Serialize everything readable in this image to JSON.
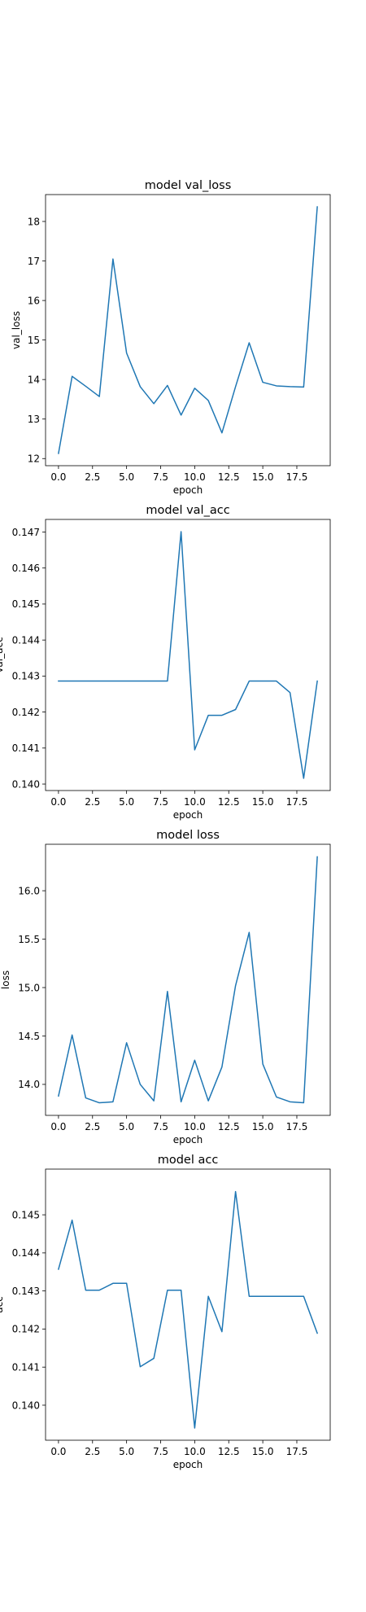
{
  "chart_data": [
    {
      "type": "line",
      "title": "model val_loss",
      "xlabel": "epoch",
      "ylabel": "val_loss",
      "x": [
        0,
        1,
        2,
        3,
        4,
        5,
        6,
        7,
        8,
        9,
        10,
        11,
        12,
        13,
        14,
        15,
        16,
        17,
        18,
        19
      ],
      "values": [
        12.13,
        14.08,
        13.83,
        13.57,
        17.05,
        14.67,
        13.82,
        13.39,
        13.85,
        13.1,
        13.78,
        13.47,
        12.65,
        13.82,
        14.93,
        13.93,
        13.84,
        13.82,
        13.81,
        18.37
      ],
      "xlim": [
        -0.95,
        19.95
      ],
      "ylim": [
        11.82,
        18.68
      ],
      "xticks": [
        0.0,
        2.5,
        5.0,
        7.5,
        10.0,
        12.5,
        15.0,
        17.5
      ],
      "xtick_labels": [
        "0.0",
        "2.5",
        "5.0",
        "7.5",
        "10.0",
        "12.5",
        "15.0",
        "17.5"
      ],
      "yticks": [
        12,
        13,
        14,
        15,
        16,
        17,
        18
      ],
      "ytick_labels": [
        "12",
        "13",
        "14",
        "15",
        "16",
        "17",
        "18"
      ],
      "color": "#1f77b4",
      "grid": false
    },
    {
      "type": "line",
      "title": "model val_acc",
      "xlabel": "epoch",
      "ylabel": "val_acc",
      "x": [
        0,
        1,
        2,
        3,
        4,
        5,
        6,
        7,
        8,
        9,
        10,
        11,
        12,
        13,
        14,
        15,
        16,
        17,
        18,
        19
      ],
      "values": [
        0.14286,
        0.14286,
        0.14286,
        0.14286,
        0.14286,
        0.14286,
        0.14286,
        0.14286,
        0.14286,
        0.14701,
        0.14095,
        0.14191,
        0.14191,
        0.14207,
        0.14286,
        0.14286,
        0.14286,
        0.14254,
        0.14016,
        0.14286
      ],
      "xlim": [
        -0.95,
        19.95
      ],
      "ylim": [
        0.13982,
        0.14735
      ],
      "xticks": [
        0.0,
        2.5,
        5.0,
        7.5,
        10.0,
        12.5,
        15.0,
        17.5
      ],
      "xtick_labels": [
        "0.0",
        "2.5",
        "5.0",
        "7.5",
        "10.0",
        "12.5",
        "15.0",
        "17.5"
      ],
      "yticks": [
        0.14,
        0.141,
        0.142,
        0.143,
        0.144,
        0.145,
        0.146,
        0.147
      ],
      "ytick_labels": [
        "0.140",
        "0.141",
        "0.142",
        "0.143",
        "0.144",
        "0.145",
        "0.146",
        "0.147"
      ],
      "color": "#1f77b4",
      "grid": false
    },
    {
      "type": "line",
      "title": "model loss",
      "xlabel": "epoch",
      "ylabel": "loss",
      "x": [
        0,
        1,
        2,
        3,
        4,
        5,
        6,
        7,
        8,
        9,
        10,
        11,
        12,
        13,
        14,
        15,
        16,
        17,
        18,
        19
      ],
      "values": [
        13.88,
        14.51,
        13.86,
        13.81,
        13.82,
        14.43,
        14.0,
        13.83,
        14.96,
        13.82,
        14.25,
        13.83,
        14.18,
        15.02,
        15.57,
        14.21,
        13.87,
        13.82,
        13.81,
        16.35
      ],
      "xlim": [
        -0.95,
        19.95
      ],
      "ylim": [
        13.68,
        16.48
      ],
      "xticks": [
        0.0,
        2.5,
        5.0,
        7.5,
        10.0,
        12.5,
        15.0,
        17.5
      ],
      "xtick_labels": [
        "0.0",
        "2.5",
        "5.0",
        "7.5",
        "10.0",
        "12.5",
        "15.0",
        "17.5"
      ],
      "yticks": [
        14.0,
        14.5,
        15.0,
        15.5,
        16.0
      ],
      "ytick_labels": [
        "14.0",
        "14.5",
        "15.0",
        "15.5",
        "16.0"
      ],
      "color": "#1f77b4",
      "grid": false
    },
    {
      "type": "line",
      "title": "model acc",
      "xlabel": "epoch",
      "ylabel": "acc",
      "x": [
        0,
        1,
        2,
        3,
        4,
        5,
        6,
        7,
        8,
        9,
        10,
        11,
        12,
        13,
        14,
        15,
        16,
        17,
        18,
        19
      ],
      "values": [
        0.14357,
        0.14486,
        0.14302,
        0.14302,
        0.1432,
        0.1432,
        0.14101,
        0.14123,
        0.14302,
        0.14302,
        0.1394,
        0.14286,
        0.14193,
        0.14561,
        0.14286,
        0.14286,
        0.14286,
        0.14286,
        0.14286,
        0.14189
      ],
      "xlim": [
        -0.95,
        19.95
      ],
      "ylim": [
        0.13908,
        0.1462
      ],
      "xticks": [
        0.0,
        2.5,
        5.0,
        7.5,
        10.0,
        12.5,
        15.0,
        17.5
      ],
      "xtick_labels": [
        "0.0",
        "2.5",
        "5.0",
        "7.5",
        "10.0",
        "12.5",
        "15.0",
        "17.5"
      ],
      "yticks": [
        0.14,
        0.141,
        0.142,
        0.143,
        0.144,
        0.145
      ],
      "ytick_labels": [
        "0.140",
        "0.141",
        "0.142",
        "0.143",
        "0.144",
        "0.145"
      ],
      "color": "#1f77b4",
      "grid": false
    }
  ]
}
